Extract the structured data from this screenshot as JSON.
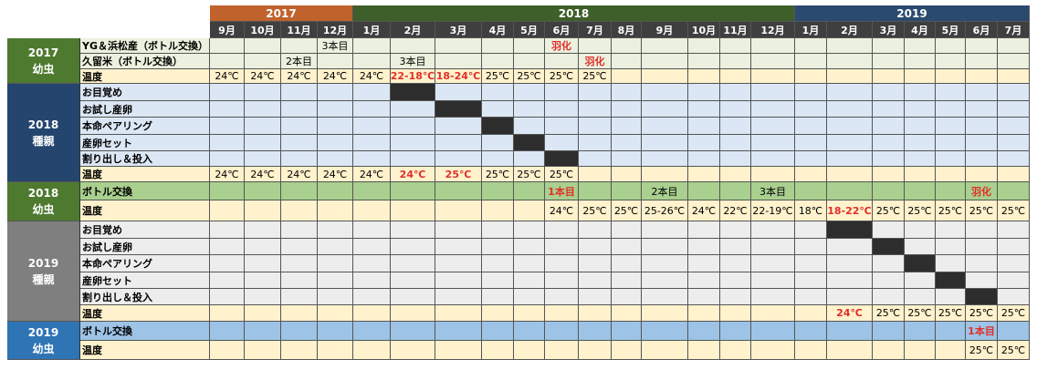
{
  "years": [
    {
      "label": "2017",
      "color": "#c0622b"
    },
    {
      "label": "2018",
      "color": "#3f5f2a"
    },
    {
      "label": "2019",
      "color": "#2b4a70"
    }
  ],
  "months": [
    "9月",
    "10月",
    "11月",
    "12月",
    "1月",
    "2月",
    "3月",
    "4月",
    "5月",
    "6月",
    "7月",
    "8月",
    "9月",
    "10月",
    "11月",
    "12月",
    "1月",
    "2月",
    "3月",
    "4月",
    "5月",
    "6月",
    "7月"
  ],
  "sections": [
    {
      "title": [
        "2017",
        "幼虫"
      ],
      "header_color": "#4e7a30",
      "bg": "#ebf1de",
      "rows": [
        {
          "label": "YG＆浜松産（ボトル交換）",
          "cells": {
            "3": "3本目",
            "9": {
              "t": "羽化",
              "red": true
            }
          }
        },
        {
          "label": "久留米（ボトル交換）",
          "cells": {
            "2": "2本目",
            "5": "3本目",
            "10": {
              "t": "羽化",
              "red": true
            }
          }
        },
        {
          "label": "温度",
          "temp": true,
          "cells": {
            "0": "24℃",
            "1": "24℃",
            "2": "24℃",
            "3": "24℃",
            "4": "24℃",
            "5": {
              "t": "22-18℃",
              "red": true
            },
            "6": {
              "t": "18-24℃",
              "red": true
            },
            "7": "25℃",
            "8": "25℃",
            "9": "25℃",
            "10": "25℃"
          }
        }
      ]
    },
    {
      "title": [
        "2018",
        "種親"
      ],
      "header_color": "#24466e",
      "bg": "#dbe7f4",
      "rows": [
        {
          "label": "お目覚め",
          "black": [
            5
          ]
        },
        {
          "label": "お試し産卵",
          "black": [
            6
          ]
        },
        {
          "label": "本命ペアリング",
          "black": [
            7
          ]
        },
        {
          "label": "産卵セット",
          "black": [
            8
          ]
        },
        {
          "label": "割り出し＆投入",
          "black": [
            9
          ]
        },
        {
          "label": "温度",
          "temp": true,
          "cells": {
            "0": "24℃",
            "1": "24℃",
            "2": "24℃",
            "3": "24℃",
            "4": "24℃",
            "5": {
              "t": "24℃",
              "red": true
            },
            "6": {
              "t": "25℃",
              "red": true
            },
            "7": "25℃",
            "8": "25℃",
            "9": "25℃"
          }
        }
      ]
    },
    {
      "title": [
        "2018",
        "幼虫"
      ],
      "header_color": "#4e7a30",
      "bg": "#a9d08e",
      "rows": [
        {
          "label": "ボトル交換",
          "cells": {
            "9": {
              "t": "1本目",
              "red": true
            },
            "12": "2本目",
            "15": "3本目",
            "21": {
              "t": "羽化",
              "red": true
            }
          }
        },
        {
          "label": "温度",
          "temp": true,
          "cells": {
            "9": "24℃",
            "10": "25℃",
            "11": "25℃",
            "12": "25-26℃",
            "13": "24℃",
            "14": "22℃",
            "15": "22-19℃",
            "16": "18℃",
            "17": {
              "t": "18-22℃",
              "red": true
            },
            "18": "25℃",
            "19": "25℃",
            "20": "25℃",
            "21": "25℃",
            "22": "25℃"
          }
        }
      ]
    },
    {
      "title": [
        "2019",
        "種親"
      ],
      "header_color": "#7f7f7f",
      "bg": "#ededed",
      "rows": [
        {
          "label": "お目覚め",
          "black": [
            17
          ]
        },
        {
          "label": "お試し産卵",
          "black": [
            18
          ]
        },
        {
          "label": "本命ペアリング",
          "black": [
            19
          ]
        },
        {
          "label": "産卵セット",
          "black": [
            20
          ]
        },
        {
          "label": "割り出し＆投入",
          "black": [
            21
          ]
        },
        {
          "label": "温度",
          "temp": true,
          "cells": {
            "17": {
              "t": "24℃",
              "red": true
            },
            "18": "25℃",
            "19": "25℃",
            "20": "25℃",
            "21": "25℃",
            "22": "25℃"
          }
        }
      ]
    },
    {
      "title": [
        "2019",
        "幼虫"
      ],
      "header_color": "#2f74b5",
      "bg": "#9dc3e6",
      "rows": [
        {
          "label": "ボトル交換",
          "cells": {
            "21": {
              "t": "1本目",
              "red": true
            }
          }
        },
        {
          "label": "温度",
          "temp": true,
          "cells": {
            "21": "25℃",
            "22": "25℃"
          }
        }
      ]
    }
  ],
  "temp_row_bg": "#fff2cc"
}
